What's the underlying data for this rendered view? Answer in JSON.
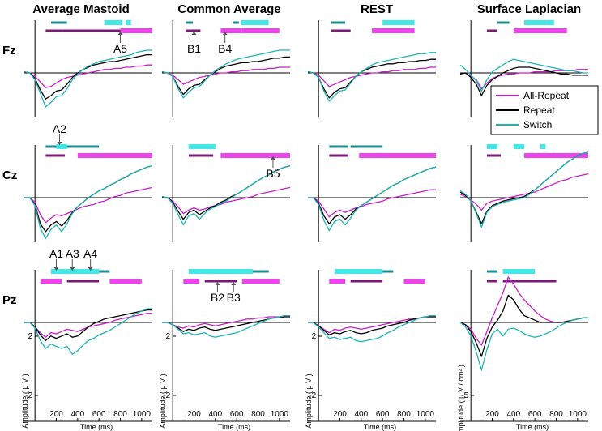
{
  "colors": {
    "all_repeat": "#c81ec8",
    "repeat": "#000000",
    "switch": "#1eb4b4",
    "sig_all_repeat_dark": "#7a1a78",
    "sig_all_repeat_light": "#ee44ee",
    "sig_switch_dark": "#1a8a8a",
    "sig_switch_light": "#44e6e6"
  },
  "chart_data": {
    "type": "line",
    "columns": [
      "Average Mastoid",
      "Common Average",
      "REST",
      "Surface Laplacian"
    ],
    "rows": [
      "Fz",
      "Cz",
      "Pz"
    ],
    "xlabel": "Time (ms)",
    "xlim": [
      -100,
      1100
    ],
    "x_ticks": [
      200,
      400,
      600,
      800,
      1000
    ],
    "ylabel_uv": "Amplitude ( μ V )",
    "ylabel_laplacian": "Amplitude ( μ V / cm² )",
    "y_ticks_uv": [
      {
        "value": 2,
        "label": "2"
      },
      {
        "value": -2,
        "label": "-2"
      }
    ],
    "y_ticks_laplacian": [
      {
        "value": -5,
        "label": "-5"
      }
    ],
    "legend": [
      "All-Repeat",
      "Repeat",
      "Switch"
    ],
    "annotations": [
      {
        "label": "A5",
        "row": 0,
        "col": 0
      },
      {
        "label": "B1",
        "row": 0,
        "col": 1
      },
      {
        "label": "B4",
        "row": 0,
        "col": 1
      },
      {
        "label": "A2",
        "row": 1,
        "col": 0
      },
      {
        "label": "B5",
        "row": 1,
        "col": 1
      },
      {
        "label": "A1",
        "row": 2,
        "col": 0
      },
      {
        "label": "A3",
        "row": 2,
        "col": 0
      },
      {
        "label": "A4",
        "row": 2,
        "col": 0
      },
      {
        "label": "B2",
        "row": 2,
        "col": 1
      },
      {
        "label": "B3",
        "row": 2,
        "col": 1
      }
    ],
    "series_x": [
      -100,
      -50,
      0,
      50,
      100,
      150,
      200,
      250,
      300,
      350,
      400,
      450,
      500,
      550,
      600,
      650,
      700,
      750,
      800,
      850,
      900,
      950,
      1000,
      1050,
      1100
    ],
    "panels": [
      {
        "row": "Fz",
        "col": "Average Mastoid",
        "all_repeat": [
          0.1,
          0.0,
          -0.3,
          -0.8,
          -1.3,
          -1.2,
          -0.9,
          -0.6,
          -0.4,
          -0.3,
          -0.2,
          -0.1,
          0.0,
          0.1,
          0.2,
          0.3,
          0.3,
          0.4,
          0.4,
          0.5,
          0.5,
          0.6,
          0.6,
          0.7,
          0.7
        ],
        "repeat": [
          0.1,
          0.0,
          -0.5,
          -1.5,
          -2.3,
          -2.0,
          -1.6,
          -1.5,
          -1.0,
          -0.4,
          0.0,
          0.3,
          0.5,
          0.7,
          0.8,
          0.9,
          1.0,
          1.0,
          1.1,
          1.2,
          1.3,
          1.4,
          1.5,
          1.6,
          1.6
        ],
        "switch": [
          0.1,
          0.0,
          -0.6,
          -1.8,
          -3.0,
          -2.6,
          -2.1,
          -2.0,
          -1.4,
          -0.6,
          -0.1,
          0.3,
          0.6,
          0.8,
          1.0,
          1.1,
          1.2,
          1.3,
          1.4,
          1.5,
          1.6,
          1.8,
          1.9,
          2.0,
          2.0
        ]
      },
      {
        "row": "Fz",
        "col": "Common Average",
        "all_repeat": [
          0.1,
          0.0,
          -0.2,
          -0.6,
          -1.0,
          -0.8,
          -0.6,
          -0.4,
          -0.3,
          -0.2,
          -0.1,
          0.0,
          0.0,
          0.1,
          0.1,
          0.2,
          0.2,
          0.3,
          0.3,
          0.3,
          0.4,
          0.4,
          0.5,
          0.5,
          0.5
        ],
        "repeat": [
          0.1,
          0.0,
          -0.3,
          -1.2,
          -1.9,
          -1.4,
          -1.1,
          -1.0,
          -0.6,
          -0.2,
          0.1,
          0.4,
          0.6,
          0.7,
          0.8,
          0.9,
          0.9,
          1.0,
          1.0,
          1.1,
          1.2,
          1.3,
          1.3,
          1.4,
          1.4
        ],
        "switch": [
          0.1,
          0.0,
          -0.3,
          -1.4,
          -2.2,
          -1.7,
          -1.3,
          -1.2,
          -0.7,
          -0.2,
          0.2,
          0.5,
          0.8,
          1.0,
          1.2,
          1.3,
          1.4,
          1.5,
          1.6,
          1.7,
          1.8,
          1.9,
          2.0,
          2.0,
          2.0
        ]
      },
      {
        "row": "Fz",
        "col": "REST",
        "all_repeat": [
          0.1,
          0.0,
          -0.2,
          -0.7,
          -1.2,
          -1.0,
          -0.8,
          -0.6,
          -0.4,
          -0.3,
          -0.2,
          -0.1,
          0.0,
          0.0,
          0.1,
          0.1,
          0.2,
          0.2,
          0.3,
          0.3,
          0.3,
          0.4,
          0.4,
          0.5,
          0.5
        ],
        "repeat": [
          0.1,
          0.0,
          -0.4,
          -1.4,
          -2.2,
          -1.7,
          -1.4,
          -1.3,
          -0.8,
          -0.3,
          0.1,
          0.3,
          0.5,
          0.6,
          0.7,
          0.8,
          0.8,
          0.9,
          0.9,
          1.0,
          1.0,
          1.1,
          1.1,
          1.2,
          1.2
        ],
        "switch": [
          0.1,
          0.0,
          -0.4,
          -1.6,
          -2.5,
          -2.0,
          -1.6,
          -1.5,
          -0.9,
          -0.3,
          0.1,
          0.4,
          0.7,
          0.9,
          1.0,
          1.1,
          1.2,
          1.3,
          1.4,
          1.5,
          1.6,
          1.7,
          1.7,
          1.8,
          1.8
        ],
        "all_repeat_note": ""
      },
      {
        "row": "Fz",
        "col": "Surface Laplacian",
        "all_repeat": [
          -0.1,
          0.0,
          -0.3,
          -0.6,
          -1.4,
          -0.9,
          -0.5,
          -0.3,
          -0.2,
          -0.1,
          -0.1,
          0.0,
          0.0,
          0.0,
          0.1,
          0.1,
          0.1,
          0.1,
          0.2,
          0.2,
          0.2,
          0.2,
          0.3,
          0.3,
          0.3
        ],
        "repeat": [
          -0.1,
          0.0,
          -0.4,
          -1.0,
          -2.0,
          -1.1,
          -0.6,
          -0.3,
          0.0,
          0.2,
          0.4,
          0.5,
          0.5,
          0.5,
          0.4,
          0.3,
          0.2,
          0.1,
          0.0,
          -0.1,
          -0.1,
          -0.2,
          -0.2,
          -0.2,
          -0.2
        ],
        "switch": [
          0.7,
          0.3,
          -0.2,
          -0.7,
          -1.6,
          -0.6,
          0.1,
          0.4,
          0.7,
          1.0,
          1.2,
          1.1,
          1.0,
          0.9,
          0.8,
          0.7,
          0.6,
          0.5,
          0.4,
          0.3,
          0.2,
          0.2,
          0.1,
          0.0,
          0.0
        ]
      },
      {
        "row": "Cz",
        "col": "Average Mastoid",
        "all_repeat": [
          0.0,
          0.0,
          -0.4,
          -1.5,
          -2.2,
          -1.8,
          -1.5,
          -1.6,
          -1.4,
          -1.2,
          -1.0,
          -0.8,
          -0.7,
          -0.6,
          -0.4,
          -0.3,
          -0.1,
          0.1,
          0.2,
          0.4,
          0.5,
          0.6,
          0.7,
          0.8,
          0.9
        ],
        "repeat": [
          0.0,
          0.0,
          -0.6,
          -2.3,
          -3.0,
          -2.4,
          -2.1,
          -2.5,
          -2.0,
          -1.3,
          -0.8,
          -0.4,
          0.0,
          0.3,
          0.6,
          0.8,
          1.1,
          1.3,
          1.6,
          1.8,
          2.1,
          2.3,
          2.5,
          2.7,
          2.8
        ],
        "switch": [
          0.0,
          0.0,
          -0.7,
          -2.7,
          -3.6,
          -2.8,
          -2.4,
          -3.0,
          -2.3,
          -1.4,
          -0.8,
          -0.4,
          0.0,
          0.3,
          0.6,
          0.8,
          1.1,
          1.3,
          1.6,
          1.8,
          2.1,
          2.3,
          2.5,
          2.7,
          2.8
        ]
      },
      {
        "row": "Cz",
        "col": "Common Average",
        "all_repeat": [
          0.1,
          0.0,
          -0.3,
          -0.8,
          -1.4,
          -1.1,
          -0.9,
          -1.1,
          -1.0,
          -0.8,
          -0.7,
          -0.6,
          -0.4,
          -0.3,
          -0.2,
          -0.1,
          0.0,
          0.1,
          0.3,
          0.4,
          0.5,
          0.6,
          0.7,
          0.8,
          0.9
        ],
        "repeat": [
          0.1,
          0.0,
          -0.4,
          -1.2,
          -1.9,
          -1.3,
          -1.1,
          -1.5,
          -1.2,
          -0.9,
          -0.7,
          -0.4,
          -0.2,
          0.1,
          0.3,
          0.6,
          0.9,
          1.2,
          1.5,
          1.8,
          2.0,
          2.3,
          2.5,
          2.7,
          2.8
        ],
        "switch": [
          0.1,
          0.0,
          -0.5,
          -1.5,
          -2.4,
          -1.6,
          -1.4,
          -1.9,
          -1.4,
          -1.0,
          -0.8,
          -0.5,
          -0.3,
          0.0,
          0.3,
          0.6,
          0.9,
          1.2,
          1.5,
          1.8,
          2.0,
          2.3,
          2.5,
          2.7,
          2.8
        ]
      },
      {
        "row": "Cz",
        "col": "REST",
        "all_repeat": [
          0.0,
          0.0,
          -0.3,
          -1.0,
          -1.7,
          -1.3,
          -1.1,
          -1.3,
          -1.1,
          -0.9,
          -0.8,
          -0.6,
          -0.5,
          -0.4,
          -0.3,
          -0.1,
          0.0,
          0.1,
          0.2,
          0.3,
          0.4,
          0.5,
          0.6,
          0.7,
          0.7
        ],
        "repeat": [
          0.0,
          0.0,
          -0.5,
          -1.6,
          -2.3,
          -1.7,
          -1.5,
          -1.9,
          -1.5,
          -1.0,
          -0.7,
          -0.4,
          -0.1,
          0.2,
          0.5,
          0.8,
          1.1,
          1.3,
          1.6,
          1.8,
          2.0,
          2.2,
          2.4,
          2.6,
          2.7
        ],
        "switch": [
          0.0,
          0.0,
          -0.6,
          -2.0,
          -2.9,
          -2.1,
          -1.9,
          -2.4,
          -1.8,
          -1.1,
          -0.7,
          -0.4,
          -0.1,
          0.2,
          0.5,
          0.8,
          1.1,
          1.3,
          1.6,
          1.8,
          2.0,
          2.2,
          2.4,
          2.6,
          2.7
        ]
      },
      {
        "row": "Cz",
        "col": "Surface Laplacian",
        "all_repeat": [
          0.3,
          0.1,
          -0.2,
          -0.6,
          -1.1,
          -0.5,
          -0.3,
          -0.2,
          -0.1,
          0.0,
          0.1,
          0.2,
          0.3,
          0.4,
          0.5,
          0.7,
          0.9,
          1.1,
          1.3,
          1.5,
          1.6,
          1.8,
          1.9,
          2.0,
          2.1
        ],
        "repeat": [
          0.5,
          0.2,
          -0.3,
          -1.3,
          -2.3,
          -1.2,
          -0.7,
          -0.5,
          -0.3,
          -0.2,
          -0.1,
          0.0,
          0.1,
          0.4,
          0.7,
          1.1,
          1.5,
          1.9,
          2.3,
          2.7,
          3.1,
          3.4,
          3.7,
          3.9,
          4.0
        ],
        "switch": [
          0.6,
          0.3,
          -0.3,
          -1.4,
          -2.6,
          -1.3,
          -0.8,
          -0.6,
          -0.4,
          -0.3,
          -0.2,
          -0.1,
          0.0,
          0.3,
          0.7,
          1.1,
          1.5,
          1.9,
          2.3,
          2.7,
          3.1,
          3.4,
          3.7,
          3.9,
          4.0
        ]
      },
      {
        "row": "Pz",
        "col": "Average Mastoid",
        "all_repeat": [
          0.0,
          0.0,
          -0.4,
          -0.9,
          -1.3,
          -0.9,
          -1.0,
          -0.8,
          -0.6,
          -0.7,
          -0.8,
          -0.6,
          -0.4,
          -0.3,
          -0.2,
          -0.1,
          0.0,
          0.2,
          0.3,
          0.4,
          0.5,
          0.6,
          0.7,
          0.8,
          0.8
        ],
        "repeat": [
          0.0,
          0.0,
          -0.4,
          -1.1,
          -1.6,
          -1.2,
          -1.4,
          -1.2,
          -1.0,
          -1.3,
          -1.2,
          -0.8,
          -0.4,
          -0.1,
          0.1,
          0.3,
          0.4,
          0.5,
          0.6,
          0.7,
          0.8,
          0.9,
          1.0,
          1.1,
          1.1
        ],
        "switch": [
          0.0,
          0.0,
          -0.5,
          -1.6,
          -2.3,
          -1.9,
          -2.1,
          -2.3,
          -2.1,
          -2.8,
          -2.5,
          -2.0,
          -1.6,
          -1.4,
          -1.1,
          -0.9,
          -0.7,
          -0.4,
          -0.1,
          0.2,
          0.5,
          0.8,
          1.0,
          1.2,
          1.2
        ]
      },
      {
        "row": "Pz",
        "col": "Common Average",
        "all_repeat": [
          0.0,
          0.0,
          -0.2,
          -0.4,
          -0.5,
          -0.3,
          -0.4,
          -0.2,
          -0.1,
          -0.2,
          -0.3,
          -0.2,
          -0.1,
          0.0,
          0.1,
          0.2,
          0.3,
          0.3,
          0.4,
          0.4,
          0.5,
          0.5,
          0.5,
          0.6,
          0.6
        ],
        "repeat": [
          0.0,
          0.0,
          -0.2,
          -0.5,
          -0.8,
          -0.6,
          -0.7,
          -0.5,
          -0.4,
          -0.6,
          -0.7,
          -0.6,
          -0.5,
          -0.4,
          -0.3,
          -0.2,
          -0.1,
          0.0,
          0.1,
          0.2,
          0.3,
          0.4,
          0.4,
          0.5,
          0.5
        ],
        "switch": [
          0.0,
          0.0,
          -0.2,
          -0.6,
          -1.0,
          -0.9,
          -1.1,
          -1.0,
          -0.9,
          -1.2,
          -1.3,
          -1.2,
          -1.1,
          -1.0,
          -0.9,
          -0.7,
          -0.5,
          -0.3,
          -0.1,
          0.1,
          0.3,
          0.4,
          0.5,
          0.6,
          0.6
        ]
      },
      {
        "row": "Pz",
        "col": "REST",
        "all_repeat": [
          0.0,
          0.0,
          -0.3,
          -0.6,
          -0.9,
          -0.6,
          -0.7,
          -0.5,
          -0.4,
          -0.5,
          -0.6,
          -0.5,
          -0.4,
          -0.3,
          -0.2,
          -0.1,
          0.0,
          0.1,
          0.2,
          0.3,
          0.3,
          0.4,
          0.5,
          0.5,
          0.5
        ],
        "repeat": [
          0.0,
          0.0,
          -0.3,
          -0.7,
          -1.1,
          -0.9,
          -1.0,
          -0.8,
          -0.7,
          -0.9,
          -1.0,
          -0.9,
          -0.7,
          -0.6,
          -0.5,
          -0.3,
          -0.2,
          -0.1,
          0.0,
          0.2,
          0.3,
          0.4,
          0.5,
          0.5,
          0.5
        ],
        "switch": [
          0.0,
          0.0,
          -0.4,
          -0.9,
          -1.4,
          -1.3,
          -1.5,
          -1.4,
          -1.3,
          -1.6,
          -1.7,
          -1.6,
          -1.5,
          -1.4,
          -1.2,
          -0.9,
          -0.7,
          -0.4,
          -0.2,
          0.0,
          0.2,
          0.4,
          0.5,
          0.6,
          0.6
        ]
      },
      {
        "row": "Pz",
        "col": "Surface Laplacian",
        "all_repeat": [
          0.0,
          -0.2,
          -0.6,
          -1.4,
          -2.0,
          -0.8,
          0.4,
          1.5,
          2.6,
          4.0,
          3.4,
          2.6,
          2.0,
          1.5,
          1.0,
          0.6,
          0.3,
          0.1,
          0.0,
          0.0,
          0.1,
          0.2,
          0.3,
          0.4,
          0.4
        ],
        "repeat": [
          0.0,
          -0.2,
          -0.8,
          -1.8,
          -3.0,
          -1.4,
          -0.4,
          0.2,
          1.0,
          2.4,
          2.0,
          1.2,
          0.6,
          0.4,
          0.2,
          0.0,
          0.0,
          0.0,
          0.0,
          0.0,
          0.1,
          0.2,
          0.3,
          0.4,
          0.4
        ],
        "switch": [
          0.0,
          -0.4,
          -1.2,
          -2.6,
          -4.2,
          -2.4,
          -1.0,
          -0.6,
          -1.2,
          -0.6,
          -0.5,
          -0.7,
          -1.0,
          -1.2,
          -1.3,
          -1.2,
          -1.0,
          -0.8,
          -0.5,
          -0.2,
          0.0,
          0.2,
          0.3,
          0.4,
          0.4
        ]
      }
    ]
  }
}
